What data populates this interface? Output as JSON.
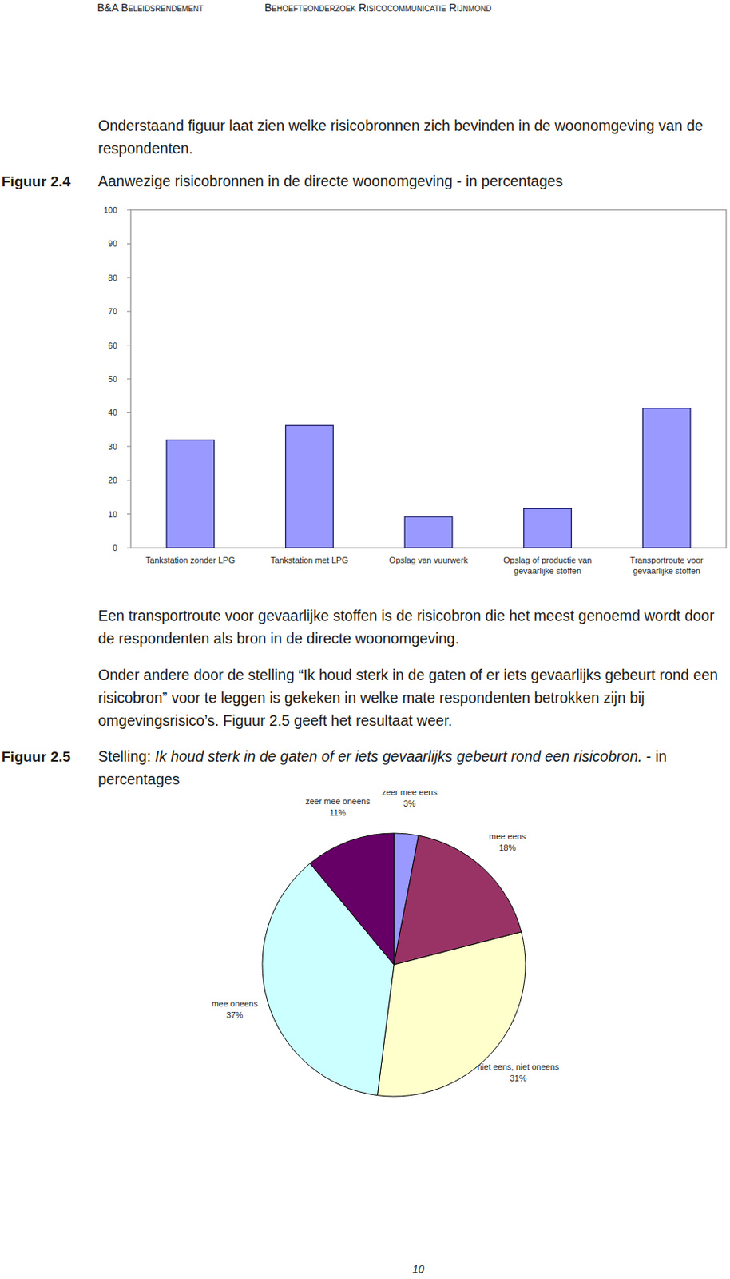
{
  "header": {
    "left": "B&A Beleidsrendement",
    "right": "Behoefteonderzoek Risicocommunicatie Rijnmond"
  },
  "intro": "Onderstaand figuur laat zien welke risicobronnen zich bevinden in de woonomgeving van de respondenten.",
  "captions": [
    {
      "label": "Figuur 2.4"
    },
    {
      "label": "Figuur 2.5",
      "prefix": "Stelling:",
      "suffix": "- in percentages"
    }
  ],
  "paragraphs": [
    "Een transportroute voor gevaarlijke stoffen is de risicobron die het meest genoemd wordt door de respondenten als bron in de directe woonomgeving.",
    "Onder andere door de stelling “Ik houd sterk in de gaten of er iets gevaarlijks gebeurt rond een risicobron” voor te leggen is gekeken in welke mate respondenten betrokken zijn bij omgevingsrisico’s. Figuur 2.5 geeft het resultaat weer."
  ],
  "chart_data": [
    {
      "type": "bar",
      "title": "Aanwezige risicobronnen in de directe woonomgeving - in percentages",
      "categories": [
        "Tankstation zonder LPG",
        "Tankstation met LPG",
        "Opslag van vuurwerk",
        "Opslag of productie van gevaarlijke stoffen",
        "Transportroute voor gevaarlijke stoffen"
      ],
      "values": [
        31.9,
        36.2,
        9.2,
        11.6,
        41.3
      ],
      "color": "#9999ff",
      "ylim": [
        0,
        100
      ],
      "yticks": [
        0,
        10,
        20,
        30,
        40,
        50,
        60,
        70,
        80,
        90,
        100
      ],
      "grid": false
    },
    {
      "type": "pie",
      "title": "Ik houd sterk in de gaten of er iets gevaarlijks gebeurt rond een risicobron.",
      "categories": [
        "zeer mee eens",
        "mee eens",
        "niet eens, niet oneens",
        "mee oneens",
        "zeer mee oneens"
      ],
      "values": [
        3,
        18,
        31,
        37,
        11
      ],
      "value_labels": [
        "3%",
        "18%",
        "31%",
        "37%",
        "11%"
      ],
      "colors": [
        "#9999ff",
        "#993366",
        "#ffffcc",
        "#ccffff",
        "#660066"
      ],
      "data_labels": true
    }
  ],
  "page_number": "10"
}
